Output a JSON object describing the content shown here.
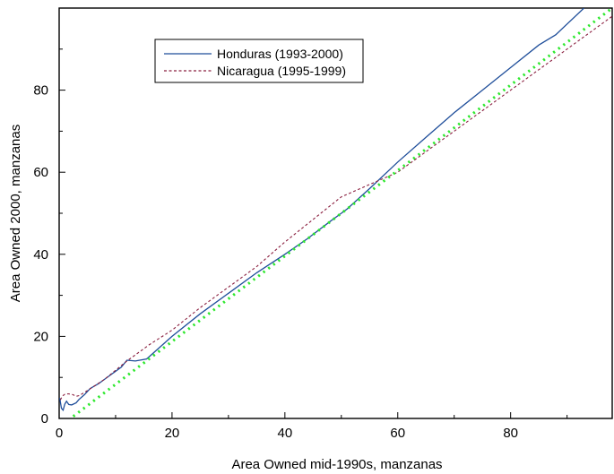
{
  "chart_data": {
    "type": "line",
    "title": "",
    "xlabel": "Area Owned mid-1990s, manzanas",
    "ylabel": "Area Owned 2000, manzanas",
    "xlim": [
      0,
      98
    ],
    "ylim": [
      0,
      100
    ],
    "x_ticks": [
      0,
      20,
      40,
      60,
      80
    ],
    "y_ticks": [
      0,
      20,
      40,
      60,
      80
    ],
    "x_tick_labels": [
      "0",
      "20",
      "40",
      "60",
      "80"
    ],
    "y_tick_labels": [
      "0",
      "20",
      "40",
      "60",
      "80"
    ],
    "grid": false,
    "legend_position": "top-left",
    "series": [
      {
        "name": "Honduras (1993-2000)",
        "color": "#1f4e9a",
        "style": "solid",
        "points": [
          [
            0.1,
            5
          ],
          [
            0.4,
            2.5
          ],
          [
            0.7,
            2
          ],
          [
            1.0,
            3.5
          ],
          [
            1.3,
            4.2
          ],
          [
            1.7,
            3.4
          ],
          [
            2.2,
            3.3
          ],
          [
            3.0,
            3.8
          ],
          [
            3.5,
            4.6
          ],
          [
            4.5,
            5.8
          ],
          [
            5.5,
            7.3
          ],
          [
            7.0,
            8.5
          ],
          [
            9.0,
            10.5
          ],
          [
            11.0,
            12.5
          ],
          [
            12.0,
            14.2
          ],
          [
            13.5,
            14.0
          ],
          [
            15.5,
            14.5
          ],
          [
            20,
            20
          ],
          [
            25,
            25.5
          ],
          [
            30,
            30.5
          ],
          [
            35,
            35.5
          ],
          [
            40,
            40
          ],
          [
            44,
            43.8
          ],
          [
            48,
            48
          ],
          [
            51,
            51
          ],
          [
            55,
            56
          ],
          [
            60,
            62.5
          ],
          [
            65,
            68.5
          ],
          [
            70,
            74.5
          ],
          [
            75,
            80
          ],
          [
            80,
            85.5
          ],
          [
            85,
            91
          ],
          [
            88,
            93.5
          ],
          [
            93,
            100
          ]
        ]
      },
      {
        "name": "Nicaragua (1995-1999)",
        "color": "#8b2040",
        "style": "dashed",
        "points": [
          [
            0.2,
            4.5
          ],
          [
            0.6,
            5.5
          ],
          [
            1.0,
            5.9
          ],
          [
            1.6,
            6.0
          ],
          [
            2.4,
            5.8
          ],
          [
            3.0,
            5.4
          ],
          [
            3.6,
            5.6
          ],
          [
            5,
            6.8
          ],
          [
            8,
            9.5
          ],
          [
            12,
            14
          ],
          [
            16,
            18
          ],
          [
            20,
            21.5
          ],
          [
            25,
            27
          ],
          [
            30,
            32
          ],
          [
            35,
            37
          ],
          [
            40,
            43
          ],
          [
            45,
            48.5
          ],
          [
            50,
            54
          ],
          [
            55,
            57
          ],
          [
            60,
            60
          ],
          [
            65,
            65
          ],
          [
            70,
            70
          ],
          [
            75,
            75
          ],
          [
            80,
            80
          ],
          [
            85,
            85
          ],
          [
            90,
            90
          ],
          [
            95,
            95
          ],
          [
            98,
            98
          ]
        ]
      },
      {
        "name": "",
        "color": "#2ee82e",
        "style": "dotted",
        "points": [
          [
            2.5,
            0.5
          ],
          [
            98,
            100
          ]
        ]
      }
    ]
  }
}
